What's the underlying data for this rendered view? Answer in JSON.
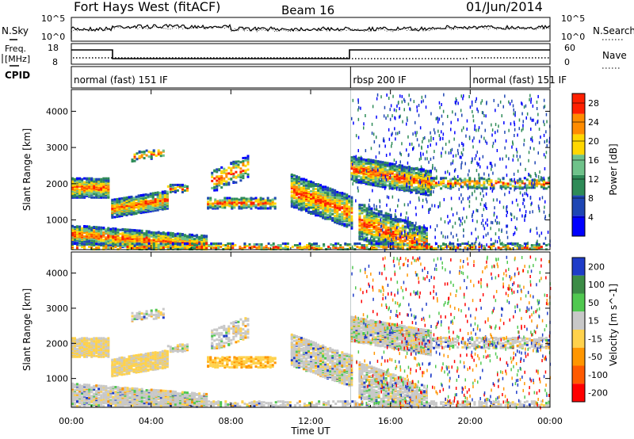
{
  "header": {
    "station": "Fort Hays West (fitACF)",
    "beam": "Beam 16",
    "date": "01/Jun/2014"
  },
  "side_labels": {
    "nsky": "N.Sky",
    "nsearch": "N.Search",
    "freq_line1": "Freq.",
    "freq_line2": "[MHz]",
    "nave": "Nave",
    "cpid": "CPID"
  },
  "noise_panel": {
    "left_ticks": [
      "10^5",
      "10^0"
    ],
    "right_ticks": [
      "10^5",
      "10^0"
    ]
  },
  "freq_panel": {
    "left_ticks": [
      "18",
      "8"
    ],
    "right_ticks": [
      "60",
      "0"
    ]
  },
  "cpid_segments": [
    {
      "label": "normal (fast) 151 IF",
      "start_hr": 0,
      "end_hr": 14
    },
    {
      "label": "rbsp 200 IF",
      "start_hr": 14,
      "end_hr": 20
    },
    {
      "label": "normal (fast) 151 IF",
      "start_hr": 20,
      "end_hr": 24
    }
  ],
  "chart_data": [
    {
      "type": "heatmap",
      "name": "power",
      "ylabel": "Slant Range [km]",
      "xlabel": "Time UT",
      "x_ticks": [
        "00:00",
        "04:00",
        "08:00",
        "12:00",
        "16:00",
        "20:00",
        "00:00"
      ],
      "xlim_hr": [
        0,
        24
      ],
      "y_ticks": [
        "1000",
        "2000",
        "3000",
        "4000"
      ],
      "ylim_km": [
        180,
        4600
      ],
      "colorbar_label": "Power [dB]",
      "colorbar_ticks": [
        "4",
        "8",
        "12",
        "16",
        "20",
        "24",
        "28"
      ],
      "colorbar_range": [
        0,
        30
      ],
      "colors": [
        "#0000ff",
        "#1e46b4",
        "#2e8b57",
        "#6fc28a",
        "#ffd700",
        "#ff8c00",
        "#ff2000"
      ]
    },
    {
      "type": "heatmap",
      "name": "velocity",
      "ylabel": "Slant Range [km]",
      "xlabel": "Time UT",
      "x_ticks": [
        "00:00",
        "04:00",
        "08:00",
        "12:00",
        "16:00",
        "20:00",
        "00:00"
      ],
      "xlim_hr": [
        0,
        24
      ],
      "y_ticks": [
        "1000",
        "2000",
        "3000",
        "4000"
      ],
      "ylim_km": [
        180,
        4600
      ],
      "colorbar_label": "Velocity [m s^-1]",
      "colorbar_ticks": [
        "200",
        "100",
        "50",
        "15",
        "-15",
        "-50",
        "-100",
        "-200"
      ],
      "colors": [
        "#1e3cc8",
        "#3c8c46",
        "#50c850",
        "#c8c8c8",
        "#ffd24c",
        "#ff9600",
        "#ff5a00",
        "#ff0000"
      ]
    }
  ]
}
